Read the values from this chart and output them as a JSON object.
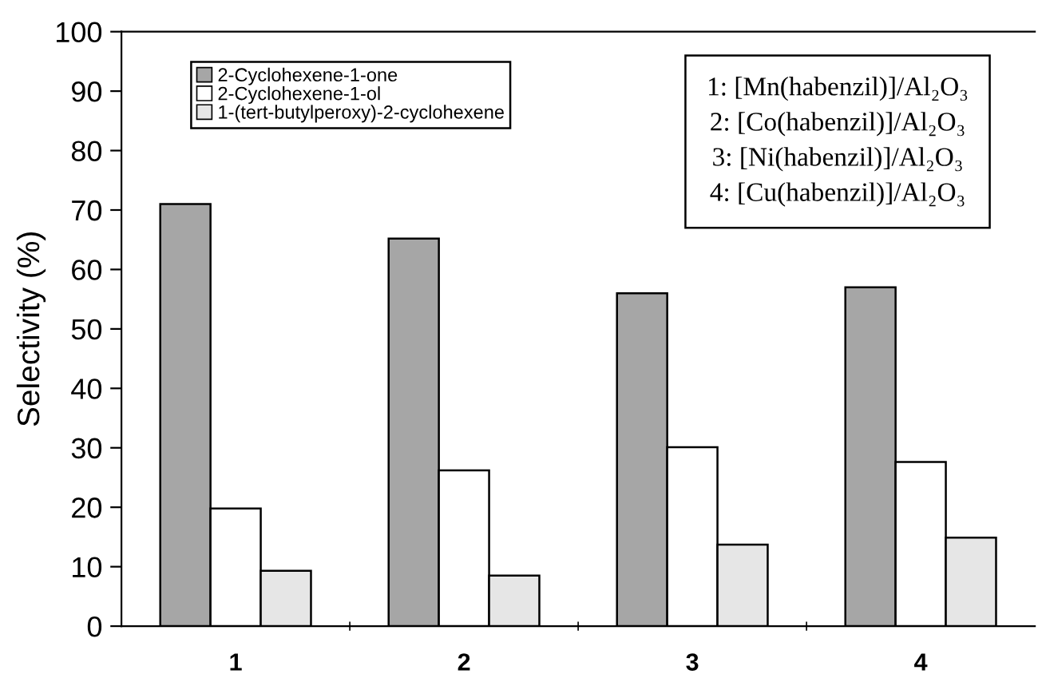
{
  "chart_data": {
    "type": "bar",
    "ylabel": "Selectivity (%)",
    "categories": [
      "1",
      "2",
      "3",
      "4"
    ],
    "series": [
      {
        "name": "2-Cyclohexene-1-one",
        "color": "#a6a6a6",
        "values": [
          71,
          65.2,
          56,
          57
        ]
      },
      {
        "name": "2-Cyclohexene-1-ol",
        "color": "#ffffff",
        "values": [
          19.8,
          26.2,
          30.1,
          27.6
        ]
      },
      {
        "name": "1-(tert-butylperoxy)-2-cyclohexene",
        "color": "#e6e6e6",
        "values": [
          9.3,
          8.5,
          13.7,
          14.9
        ]
      }
    ],
    "ylim": [
      0,
      100
    ],
    "yticks": [
      0,
      10,
      20,
      30,
      40,
      50,
      60,
      70,
      80,
      90,
      100
    ],
    "grid": false,
    "legend": "top left",
    "annotations": [
      "1: [Mn(habenzil)]/Al₂O₃",
      "2: [Co(habenzil)]/Al₂O₃",
      "3: [Ni(habenzil)]/Al₂O₃",
      "4: [Cu(habenzil)]/Al₂O₃"
    ]
  }
}
